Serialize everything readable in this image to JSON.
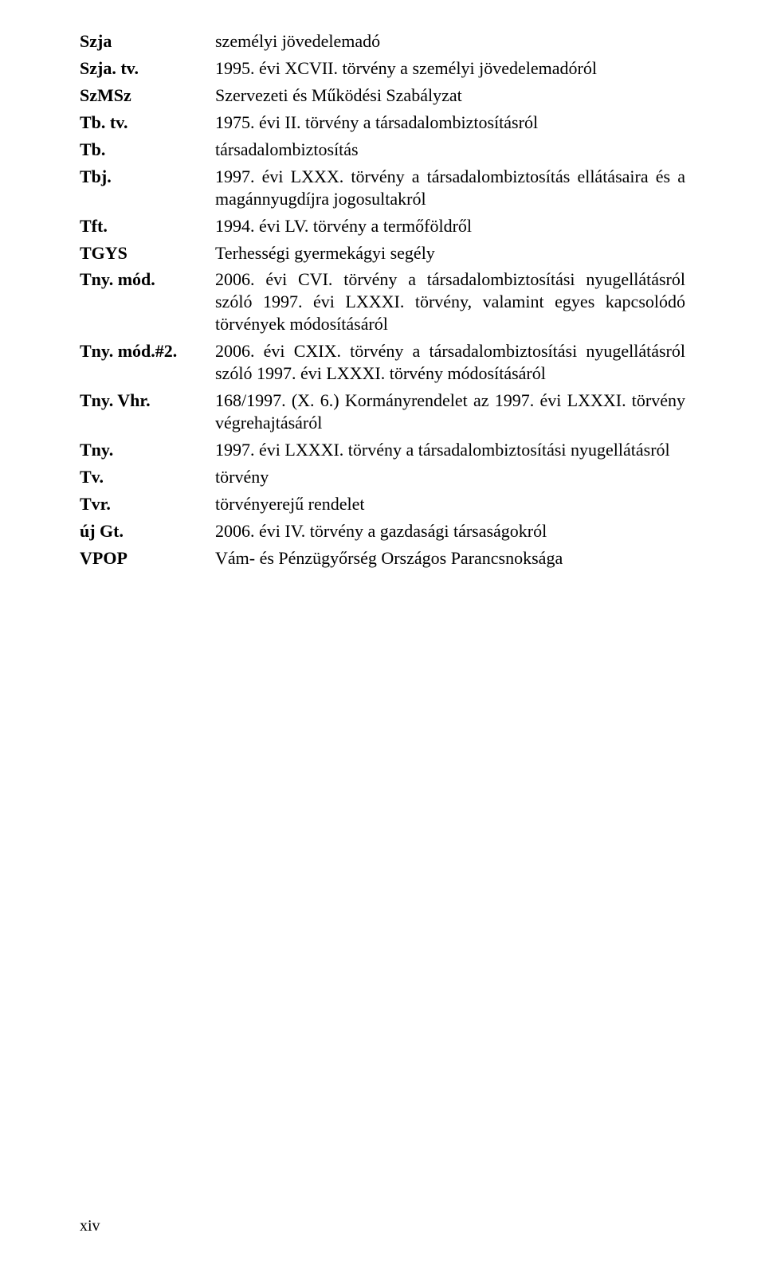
{
  "entries": [
    {
      "term": "Szja",
      "def": "személyi jövedelemadó"
    },
    {
      "term": "Szja. tv.",
      "def": "1995. évi XCVII. törvény a személyi jövedelemadóról"
    },
    {
      "term": "SzMSz",
      "def": "Szervezeti és Működési Szabályzat"
    },
    {
      "term": "Tb. tv.",
      "def": "1975. évi II. törvény a társadalombiztosításról"
    },
    {
      "term": "Tb.",
      "def": "társadalombiztosítás"
    },
    {
      "term": "Tbj.",
      "def": "1997. évi LXXX. törvény a társadalombiztosítás ellátásaira és a magánnyugdíjra jogosultakról"
    },
    {
      "term": "Tft.",
      "def": "1994. évi LV. törvény a termőföldről"
    },
    {
      "term": "TGYS",
      "def": "Terhességi gyermekágyi segély"
    },
    {
      "term": "Tny. mód.",
      "def": "2006. évi CVI. törvény a társadalombiztosítási nyugellátásról szóló 1997. évi LXXXI. törvény, valamint egyes kapcsolódó törvények módosításáról"
    },
    {
      "term": "Tny. mód.#2.",
      "def": "2006. évi CXIX. törvény a társadalombiztosítási nyugellátásról szóló 1997. évi LXXXI. törvény módosításáról"
    },
    {
      "term": "Tny. Vhr.",
      "def": "168/1997. (X. 6.) Kormányrendelet az 1997. évi LXXXI. törvény végrehajtásáról"
    },
    {
      "term": "Tny.",
      "def": "1997. évi LXXXI. törvény a társadalombiztosítási nyugellátásról"
    },
    {
      "term": "Tv.",
      "def": "törvény"
    },
    {
      "term": "Tvr.",
      "def": "törvényerejű rendelet"
    },
    {
      "term": "új Gt.",
      "def": "2006. évi IV. törvény a gazdasági társaságokról"
    },
    {
      "term": "VPOP",
      "def": "Vám- és Pénzügyőrség Országos Parancsnoksága"
    }
  ],
  "page_number": "xiv",
  "colors": {
    "text": "#000000",
    "background": "#ffffff"
  },
  "fontsize": {
    "body": 22,
    "footer": 20
  }
}
